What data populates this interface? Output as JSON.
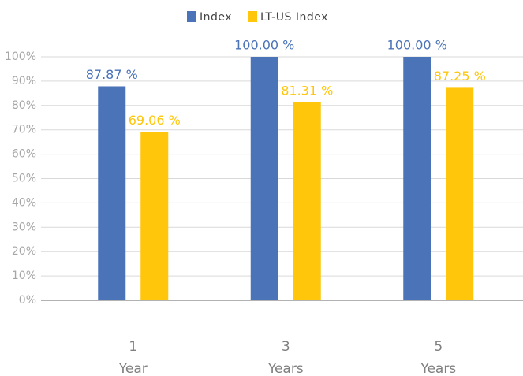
{
  "chart_data": {
    "type": "bar",
    "categories": [
      "1 Year",
      "3 Years",
      "5 Years"
    ],
    "series": [
      {
        "name": "Index",
        "color": "#4a73b8",
        "values": [
          87.87,
          100.0,
          100.0
        ],
        "value_labels": [
          "87.87 %",
          "100.00 %",
          "100.00 %"
        ]
      },
      {
        "name": "LT-US Index",
        "color": "#ffc60b",
        "values": [
          69.06,
          81.31,
          87.25
        ],
        "value_labels": [
          "69.06 %",
          "81.31 %",
          "87.25 %"
        ]
      }
    ],
    "ylim": [
      0,
      100
    ],
    "yticks": [
      {
        "value": 0,
        "label": "0%"
      },
      {
        "value": 10,
        "label": "10%"
      },
      {
        "value": 20,
        "label": "20%"
      },
      {
        "value": 30,
        "label": "30%"
      },
      {
        "value": 40,
        "label": "40%"
      },
      {
        "value": 50,
        "label": "50%"
      },
      {
        "value": 60,
        "label": "60%"
      },
      {
        "value": 70,
        "label": "70%"
      },
      {
        "value": 80,
        "label": "80%"
      },
      {
        "value": 90,
        "label": "90%"
      },
      {
        "value": 100,
        "label": "100%"
      }
    ],
    "grid": true,
    "legend": "top"
  }
}
